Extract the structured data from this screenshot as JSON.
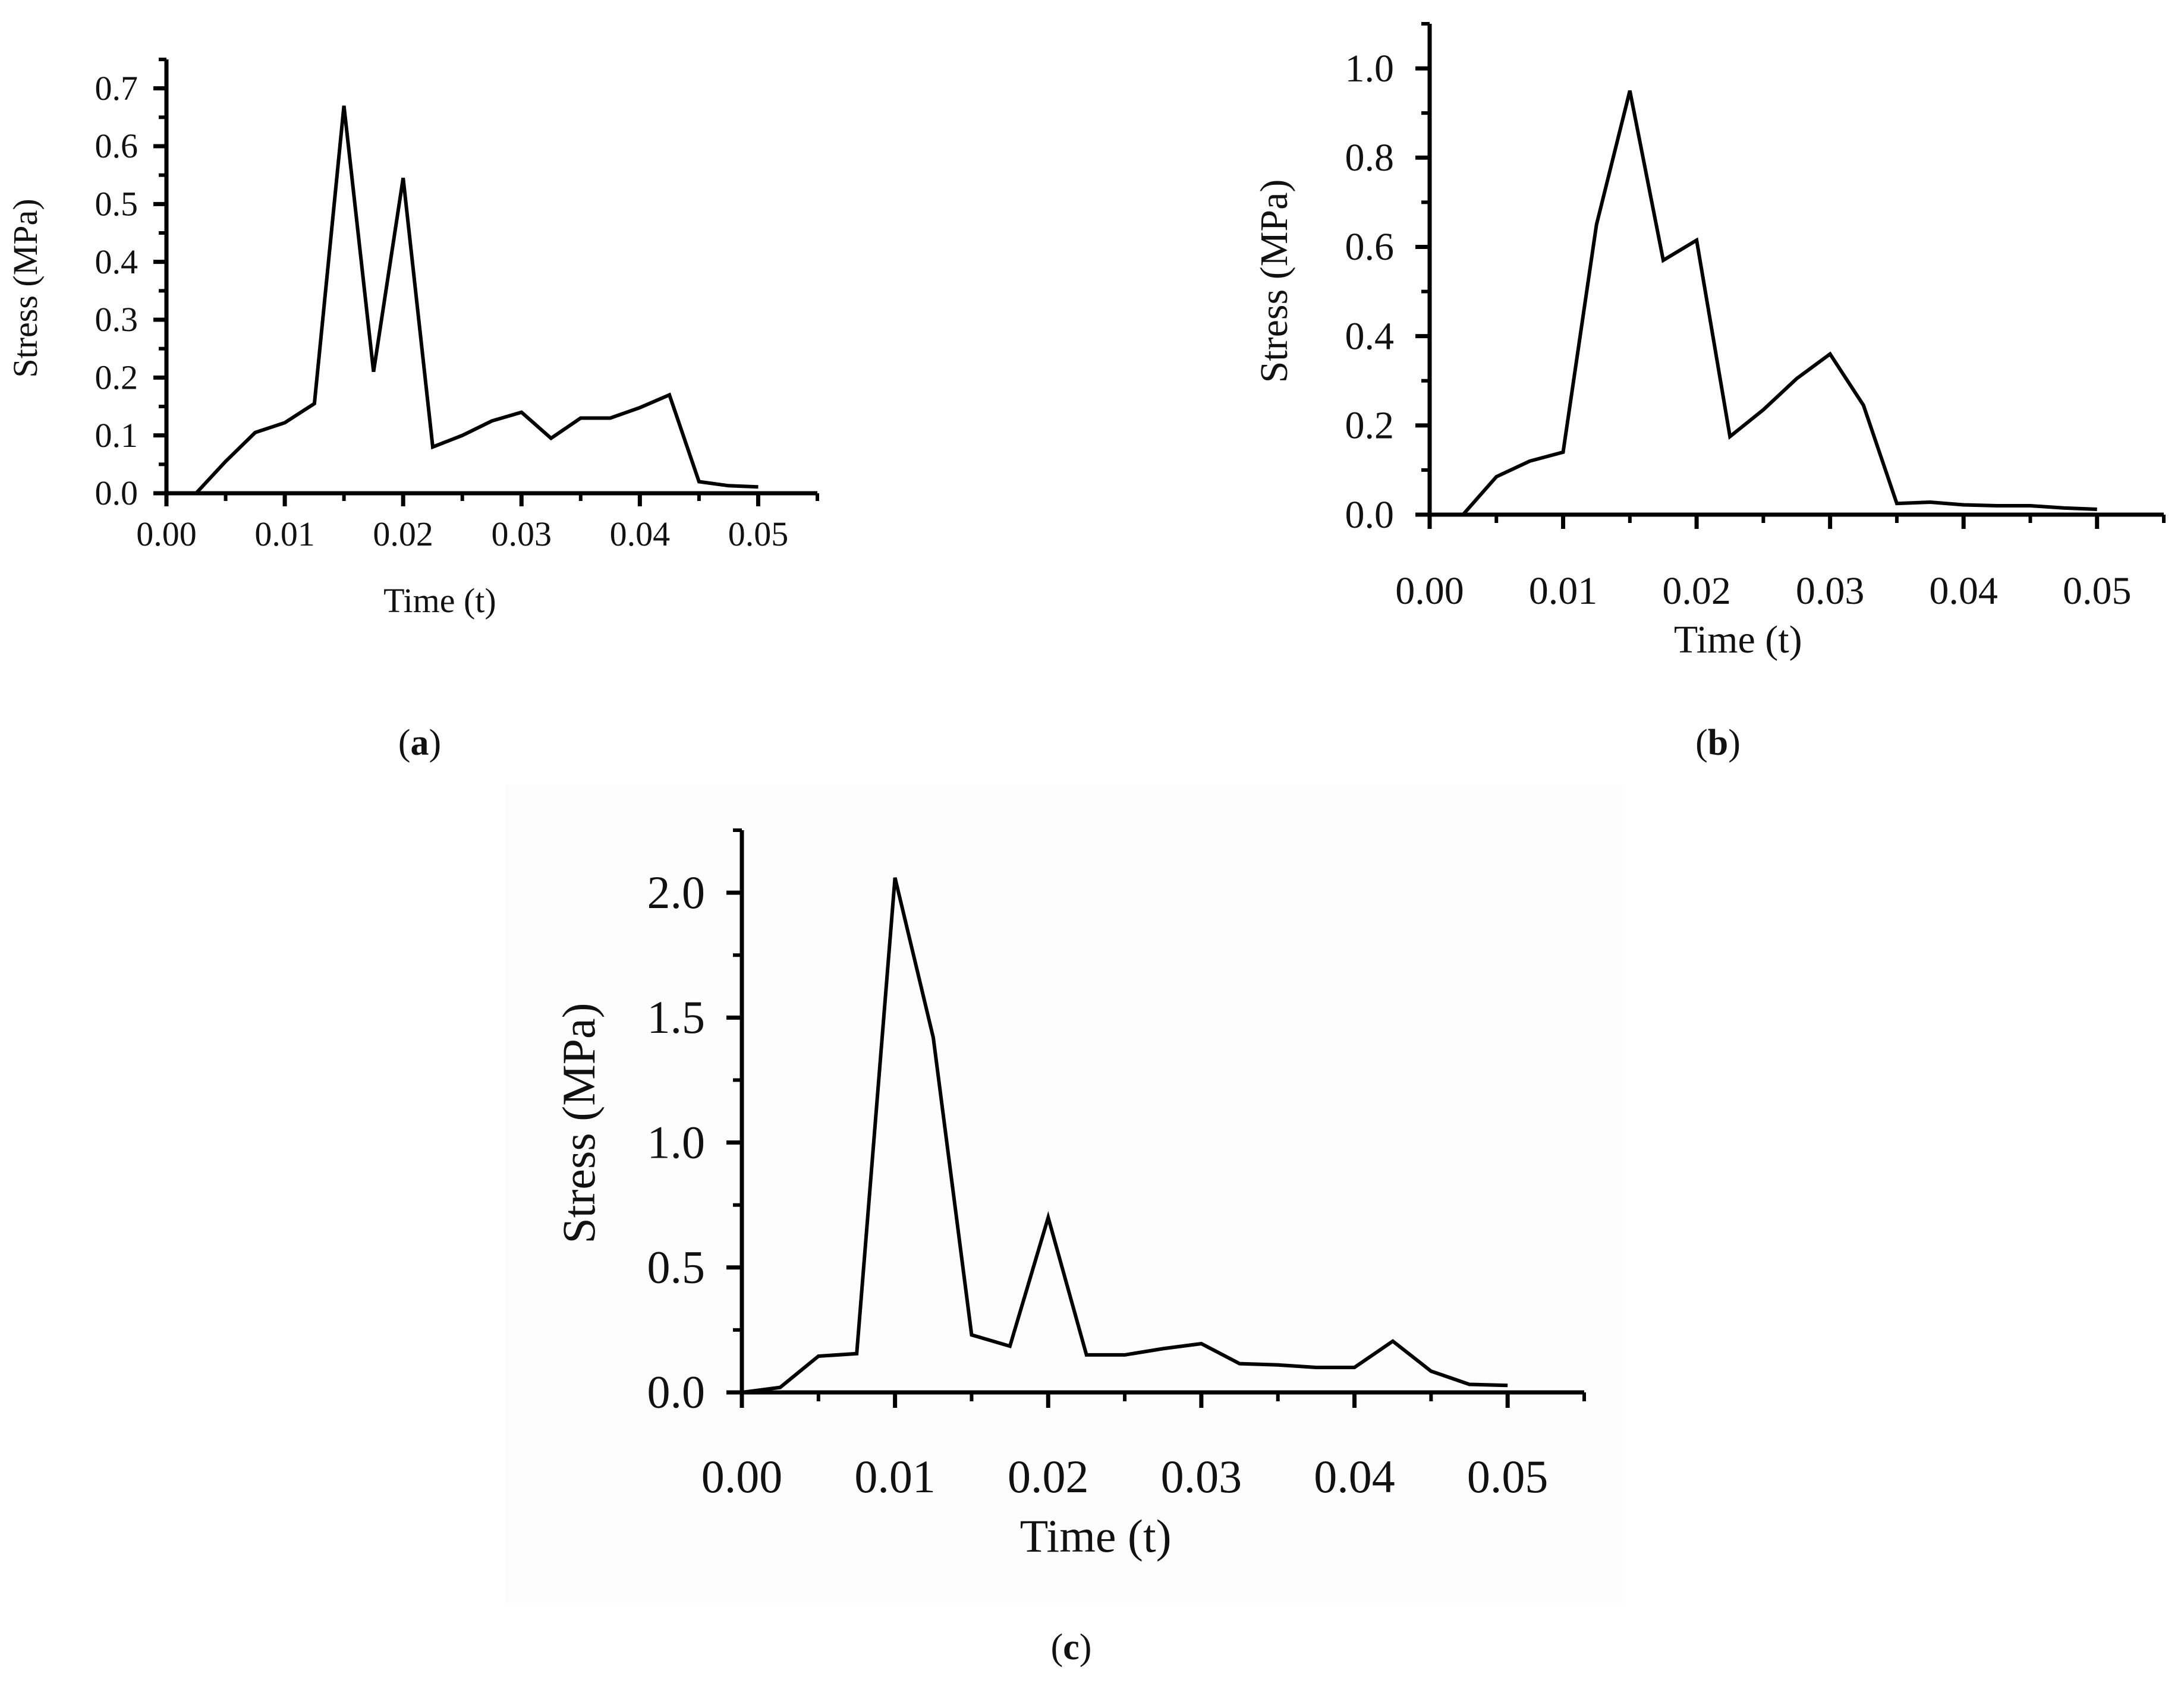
{
  "chart_data": [
    {
      "panel": "a",
      "type": "line",
      "title": "",
      "caption_open": "(",
      "caption_letter": "a",
      "caption_close": ")",
      "xlabel": "Time (t)",
      "ylabel": "Stress (MPa)",
      "xlim": [
        0,
        0.055
      ],
      "ylim": [
        0,
        0.75
      ],
      "x_ticks": [
        0.0,
        0.01,
        0.02,
        0.03,
        0.04,
        0.05
      ],
      "x_tick_labels": [
        "0.00",
        "0.01",
        "0.02",
        "0.03",
        "0.04",
        "0.05"
      ],
      "y_ticks": [
        0.0,
        0.1,
        0.2,
        0.3,
        0.4,
        0.5,
        0.6,
        0.7
      ],
      "y_tick_labels": [
        "0.0",
        "0.1",
        "0.2",
        "0.3",
        "0.4",
        "0.5",
        "0.6",
        "0.7"
      ],
      "x_minor_step": 0.005,
      "y_minor_step": 0.05,
      "series": [
        {
          "name": "Stress",
          "x": [
            0.0,
            0.0025,
            0.005,
            0.0075,
            0.01,
            0.0125,
            0.015,
            0.0175,
            0.02,
            0.0225,
            0.025,
            0.0275,
            0.03,
            0.0325,
            0.035,
            0.0375,
            0.04,
            0.0425,
            0.045,
            0.0475,
            0.05
          ],
          "y": [
            0.0,
            0.0,
            0.055,
            0.105,
            0.122,
            0.155,
            0.67,
            0.21,
            0.545,
            0.08,
            0.1,
            0.125,
            0.14,
            0.095,
            0.13,
            0.13,
            0.148,
            0.17,
            0.02,
            0.013,
            0.011
          ]
        }
      ]
    },
    {
      "panel": "b",
      "type": "line",
      "title": "",
      "caption_open": "(",
      "caption_letter": "b",
      "caption_close": ")",
      "xlabel": "Time (t)",
      "ylabel": "Stress (MPa)",
      "xlim": [
        0,
        0.055
      ],
      "ylim": [
        0,
        1.1
      ],
      "x_ticks": [
        0.0,
        0.01,
        0.02,
        0.03,
        0.04,
        0.05
      ],
      "x_tick_labels": [
        "0.00",
        "0.01",
        "0.02",
        "0.03",
        "0.04",
        "0.05"
      ],
      "y_ticks": [
        0.0,
        0.2,
        0.4,
        0.6,
        0.8,
        1.0
      ],
      "y_tick_labels": [
        "0.0",
        "0.2",
        "0.4",
        "0.6",
        "0.8",
        "1.0"
      ],
      "x_minor_step": 0.005,
      "y_minor_step": 0.1,
      "series": [
        {
          "name": "Stress",
          "x": [
            0.0,
            0.0025,
            0.005,
            0.0075,
            0.01,
            0.0125,
            0.015,
            0.0175,
            0.02,
            0.0225,
            0.025,
            0.0275,
            0.03,
            0.0325,
            0.035,
            0.0375,
            0.04,
            0.0425,
            0.045,
            0.0475,
            0.05
          ],
          "y": [
            0.0,
            0.0,
            0.085,
            0.12,
            0.14,
            0.65,
            0.95,
            0.57,
            0.615,
            0.175,
            0.235,
            0.305,
            0.36,
            0.245,
            0.025,
            0.028,
            0.022,
            0.02,
            0.02,
            0.015,
            0.012
          ]
        }
      ]
    },
    {
      "panel": "c",
      "type": "line",
      "title": "",
      "caption_open": "(",
      "caption_letter": "c",
      "caption_close": ")",
      "xlabel": "Time (t)",
      "ylabel": "Stress (MPa)",
      "xlim": [
        0,
        0.055
      ],
      "ylim": [
        0,
        2.25
      ],
      "x_ticks": [
        0.0,
        0.01,
        0.02,
        0.03,
        0.04,
        0.05
      ],
      "x_tick_labels": [
        "0.00",
        "0.01",
        "0.02",
        "0.03",
        "0.04",
        "0.05"
      ],
      "y_ticks": [
        0.0,
        0.5,
        1.0,
        1.5,
        2.0
      ],
      "y_tick_labels": [
        "0.0",
        "0.5",
        "1.0",
        "1.5",
        "2.0"
      ],
      "x_minor_step": 0.005,
      "y_minor_step": 0.25,
      "series": [
        {
          "name": "Stress",
          "x": [
            0.0,
            0.0025,
            0.005,
            0.0075,
            0.01,
            0.0125,
            0.015,
            0.0175,
            0.02,
            0.0225,
            0.025,
            0.0275,
            0.03,
            0.0325,
            0.035,
            0.0375,
            0.04,
            0.0425,
            0.045,
            0.0475,
            0.05
          ],
          "y": [
            0.0,
            0.02,
            0.145,
            0.155,
            2.06,
            1.42,
            0.23,
            0.185,
            0.7,
            0.15,
            0.15,
            0.175,
            0.195,
            0.115,
            0.11,
            0.1,
            0.1,
            0.205,
            0.085,
            0.032,
            0.028
          ]
        }
      ]
    }
  ]
}
